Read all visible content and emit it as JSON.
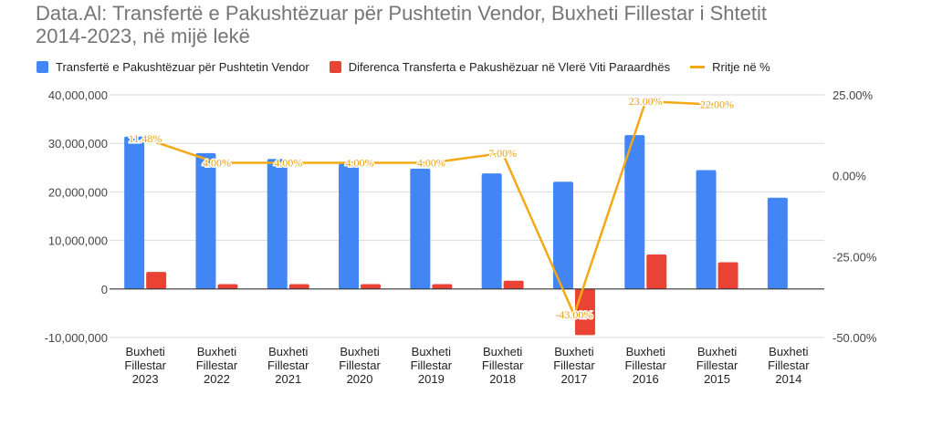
{
  "title_line1": "Data.Al: Transfertë e Pakushtëzuar për Pushtetin Vendor, Buxheti Fillestar i Shtetit",
  "title_line2": "2014-2023, në mijë lekë",
  "colors": {
    "transfer": "#4285f4",
    "difference": "#ea4335",
    "growth": "#f3a915",
    "grid": "#d9d9d9",
    "baseline": "#333333"
  },
  "chart_data": {
    "type": "bar",
    "categories": [
      [
        "Buxheti",
        "Fillestar",
        "2023"
      ],
      [
        "Buxheti",
        "Fillestar",
        "2022"
      ],
      [
        "Buxheti",
        "Fillestar",
        "2021"
      ],
      [
        "Buxheti",
        "Fillestar",
        "2020"
      ],
      [
        "Buxheti",
        "Fillestar",
        "2019"
      ],
      [
        "Buxheti",
        "Fillestar",
        "2018"
      ],
      [
        "Buxheti",
        "Fillestar",
        "2017"
      ],
      [
        "Buxheti",
        "Fillestar",
        "2016"
      ],
      [
        "Buxheti",
        "Fillestar",
        "2015"
      ],
      [
        "Buxheti",
        "Fillestar",
        "2014"
      ]
    ],
    "series": [
      {
        "name": "Transfertë e Pakushtëzuar për Pushtetin Vendor",
        "type": "bar",
        "axis": "left",
        "values": [
          31400000,
          28000000,
          26800000,
          25800000,
          24800000,
          23800000,
          22100000,
          31700000,
          24500000,
          18800000
        ]
      },
      {
        "name": "Diferenca Transferta e Pakushëzuar në Vlerë Viti Paraardhës",
        "type": "bar",
        "axis": "left",
        "values": [
          3500000,
          1000000,
          1000000,
          1000000,
          1000000,
          1700000,
          -9500000,
          7100000,
          5500000,
          null
        ]
      },
      {
        "name": "Rritje në %",
        "type": "line",
        "axis": "right",
        "values": [
          11.48,
          4.0,
          4.0,
          4.0,
          4.0,
          7.0,
          -43.0,
          23.0,
          22.0,
          null
        ],
        "labels": [
          "11.48%",
          "4.00%",
          "4.00%",
          "4.00%",
          "4.00%",
          "7.00%",
          "-43.00%",
          "23.00%",
          "22.00%",
          ""
        ]
      }
    ],
    "y_left": {
      "min": -10000000,
      "max": 40000000,
      "ticks": [
        40000000,
        30000000,
        20000000,
        10000000,
        0,
        -10000000
      ],
      "tick_labels": [
        "40,000,000",
        "30,000,000",
        "20,000,000",
        "10,000,000",
        "0",
        "-10,000,000"
      ]
    },
    "y_right": {
      "min": -50,
      "max": 25,
      "ticks": [
        25,
        0,
        -25,
        -50
      ],
      "tick_labels": [
        "25.00%",
        "0.00%",
        "-25.00%",
        "-50.00%"
      ]
    },
    "grid": true,
    "legend_position": "top"
  }
}
